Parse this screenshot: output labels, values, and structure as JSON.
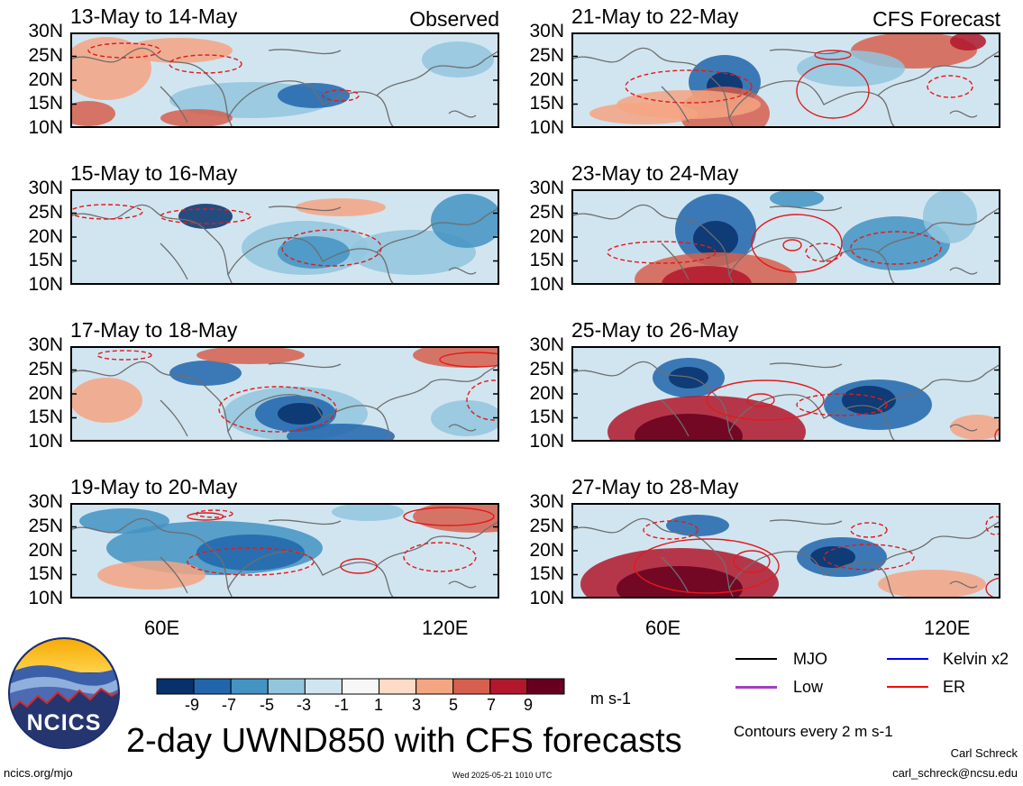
{
  "column_tags": {
    "left": "Observed",
    "right": "CFS Forecast"
  },
  "panels": [
    {
      "title": "13-May to 14-May",
      "column": "left",
      "row": 0
    },
    {
      "title": "15-May to 16-May",
      "column": "left",
      "row": 1
    },
    {
      "title": "17-May to 18-May",
      "column": "left",
      "row": 2
    },
    {
      "title": "19-May to 20-May",
      "column": "left",
      "row": 3
    },
    {
      "title": "21-May to 22-May",
      "column": "right",
      "row": 0
    },
    {
      "title": "23-May to 24-May",
      "column": "right",
      "row": 1
    },
    {
      "title": "25-May to 26-May",
      "column": "right",
      "row": 2
    },
    {
      "title": "27-May to 28-May",
      "column": "right",
      "row": 3
    }
  ],
  "lat_labels": [
    "30N",
    "25N",
    "20N",
    "15N",
    "10N"
  ],
  "lon_labels": [
    "60E",
    "120E"
  ],
  "colorbar": {
    "colors": [
      "#08306b",
      "#2166ac",
      "#4393c3",
      "#92c5de",
      "#d1e5f0",
      "#f7f7f7",
      "#fddbc7",
      "#f4a582",
      "#d6604d",
      "#b2182b",
      "#67001f"
    ],
    "labels": [
      "-9",
      "-7",
      "-5",
      "-3",
      "-1",
      "1",
      "3",
      "5",
      "7",
      "9"
    ],
    "units": "m s-1"
  },
  "legend": {
    "items": [
      {
        "label": "MJO",
        "color": "#000000"
      },
      {
        "label": "Kelvin x2",
        "color": "#0000ff"
      },
      {
        "label": "Low",
        "color": "#a040c0"
      },
      {
        "label": "ER",
        "color": "#ff0000"
      }
    ],
    "contour_note": "Contours every 2 m s-1"
  },
  "main_title": "2-day UWND850 with CFS forecasts",
  "logo_text": "NCICS",
  "footer": {
    "url": "ncics.org/mjo",
    "timestamp": "Wed 2025-05-21 1010 UTC",
    "author": "Carl Schreck",
    "email": "carl_schreck@ncsu.edu"
  }
}
